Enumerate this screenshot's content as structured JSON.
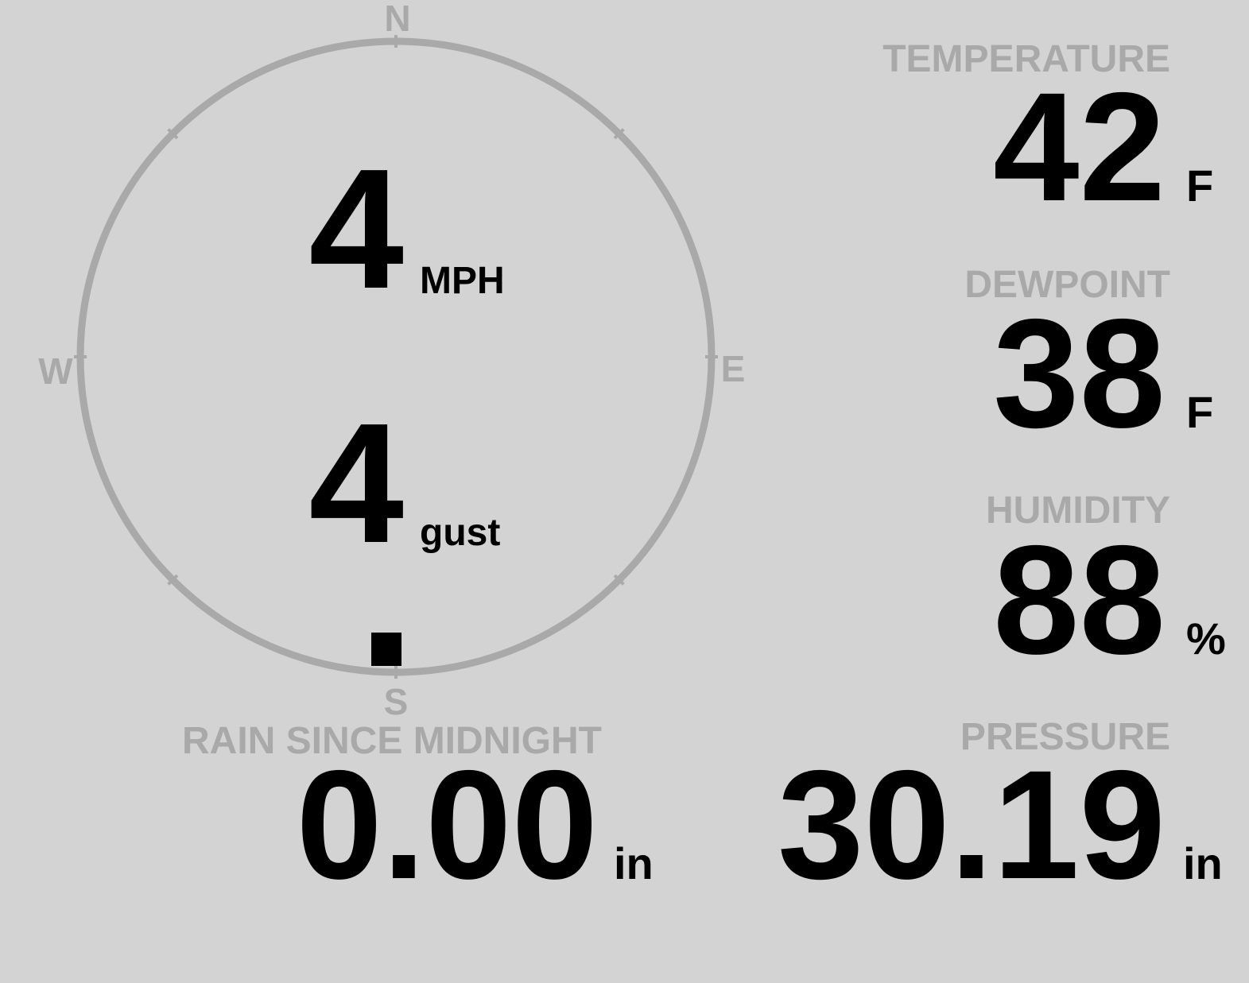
{
  "wind": {
    "speed": "4",
    "speed_unit": "MPH",
    "gust": "4",
    "gust_unit": "gust",
    "direction_deg": 180,
    "compass": {
      "n": "N",
      "e": "E",
      "s": "S",
      "w": "W"
    }
  },
  "temperature": {
    "label": "TEMPERATURE",
    "value": "42",
    "unit": "F"
  },
  "dewpoint": {
    "label": "DEWPOINT",
    "value": "38",
    "unit": "F"
  },
  "humidity": {
    "label": "HUMIDITY",
    "value": "88",
    "unit": "%"
  },
  "pressure": {
    "label": "PRESSURE",
    "value": "30.19",
    "unit": "in"
  },
  "rain": {
    "label": "RAIN SINCE MIDNIGHT",
    "value": "0.00",
    "unit": "in"
  },
  "colors": {
    "background": "#d3d3d3",
    "label": "#a9a9a9",
    "value": "#000000"
  }
}
